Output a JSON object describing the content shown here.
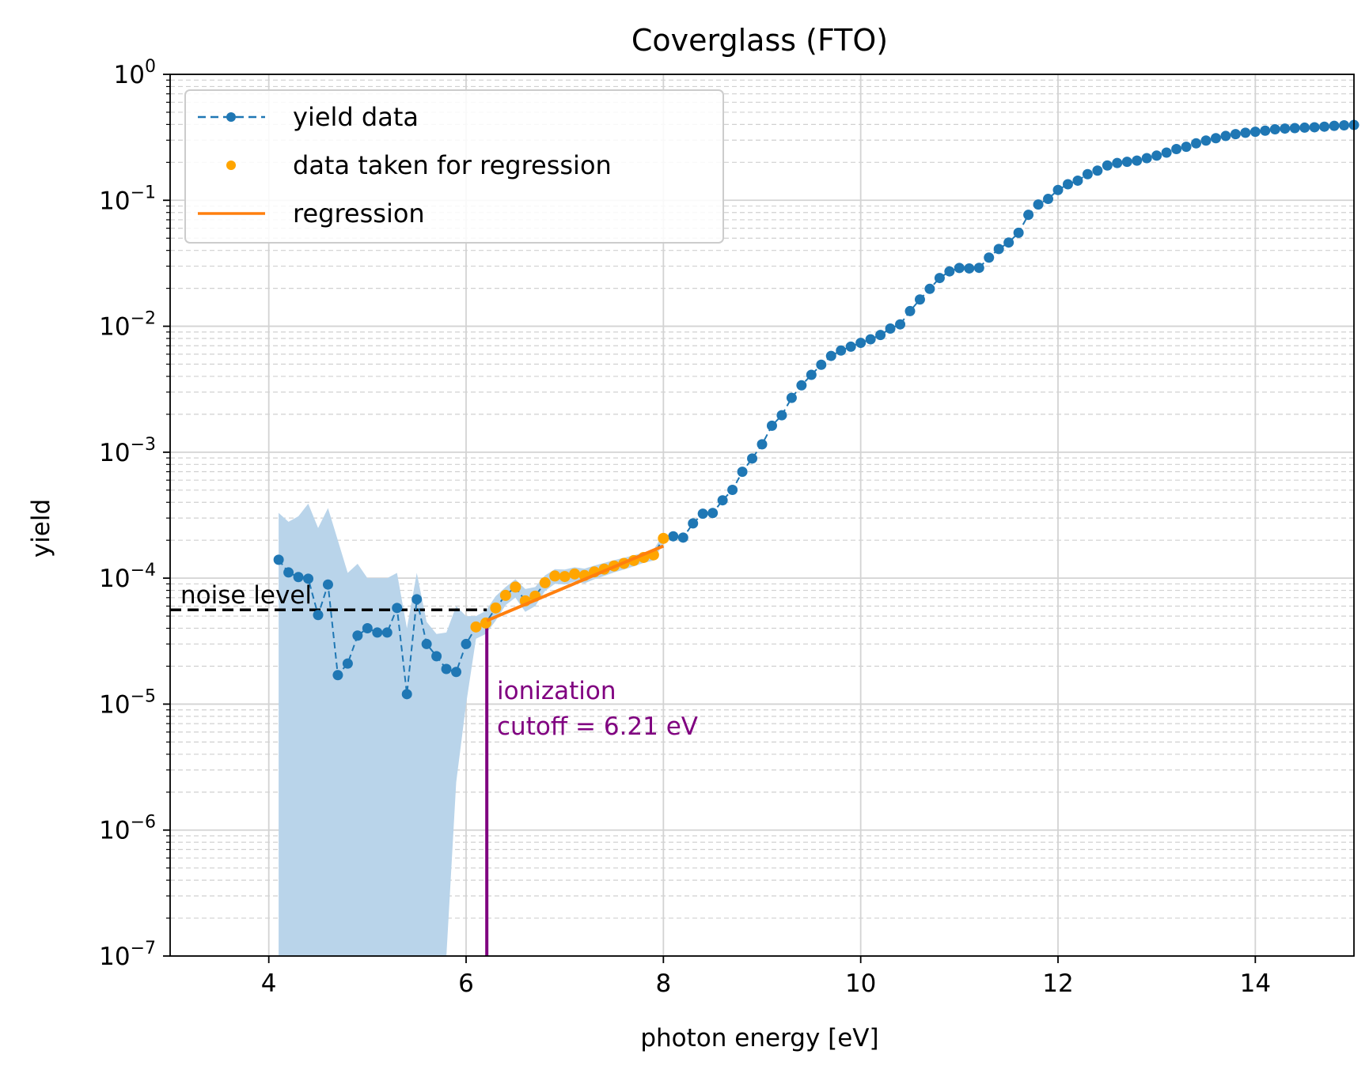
{
  "chart_data": {
    "type": "line",
    "title": "Coverglass (FTO)",
    "xlabel": "photon energy [eV]",
    "ylabel": "yield",
    "xlim": [
      3,
      15
    ],
    "ylim": [
      1e-07,
      1
    ],
    "yscale": "log",
    "grid": true,
    "legend_position": "top-left",
    "x_ticks": [
      4,
      6,
      8,
      10,
      12,
      14
    ],
    "y_ticks": [
      {
        "value": 1e-07,
        "base": "10",
        "exp": "−7"
      },
      {
        "value": 1e-06,
        "base": "10",
        "exp": "−6"
      },
      {
        "value": 1e-05,
        "base": "10",
        "exp": "−5"
      },
      {
        "value": 0.0001,
        "base": "10",
        "exp": "−4"
      },
      {
        "value": 0.001,
        "base": "10",
        "exp": "−3"
      },
      {
        "value": 0.01,
        "base": "10",
        "exp": "−2"
      },
      {
        "value": 0.1,
        "base": "10",
        "exp": "−1"
      },
      {
        "value": 1,
        "base": "10",
        "exp": "0"
      }
    ],
    "legend": [
      {
        "label": "yield data",
        "color": "#1f77b4",
        "style": "dashed-line-dot"
      },
      {
        "label": "data taken for regression",
        "color": "#ffa500",
        "style": "dot"
      },
      {
        "label": "regression",
        "color": "#ff7f0e",
        "style": "line"
      }
    ],
    "series": [
      {
        "name": "yield data",
        "color": "#1f77b4",
        "x": [
          4.1,
          4.2,
          4.3,
          4.4,
          4.5,
          4.6,
          4.7,
          4.8,
          4.9,
          5.0,
          5.1,
          5.2,
          5.3,
          5.4,
          5.5,
          5.6,
          5.7,
          5.8,
          5.9,
          6.0,
          6.1,
          6.2,
          6.3,
          6.4,
          6.5,
          6.6,
          6.7,
          6.8,
          6.9,
          7.0,
          7.1,
          7.2,
          7.3,
          7.4,
          7.5,
          7.6,
          7.7,
          7.8,
          7.9,
          8.0,
          8.1,
          8.2,
          8.3,
          8.4,
          8.5,
          8.6,
          8.7,
          8.8,
          8.9,
          9.0,
          9.1,
          9.2,
          9.3,
          9.4,
          9.5,
          9.6,
          9.7,
          9.8,
          9.9,
          10.0,
          10.1,
          10.2,
          10.3,
          10.4,
          10.5,
          10.6,
          10.7,
          10.8,
          10.9,
          11.0,
          11.1,
          11.2,
          11.3,
          11.4,
          11.5,
          11.6,
          11.7,
          11.8,
          11.9,
          12.0,
          12.1,
          12.2,
          12.3,
          12.4,
          12.5,
          12.6,
          12.7,
          12.8,
          12.9,
          13.0,
          13.1,
          13.2,
          13.3,
          13.4,
          13.5,
          13.6,
          13.7,
          13.8,
          13.9,
          14.0,
          14.1,
          14.2,
          14.3,
          14.4,
          14.5,
          14.6,
          14.7,
          14.8,
          14.9,
          15.0
        ],
        "y": [
          0.00014,
          0.000111,
          0.000102,
          9.9e-05,
          5.1e-05,
          8.9e-05,
          1.7e-05,
          2.1e-05,
          3.5e-05,
          4e-05,
          3.7e-05,
          3.7e-05,
          5.8e-05,
          1.2e-05,
          6.8e-05,
          3e-05,
          2.4e-05,
          1.9e-05,
          1.8e-05,
          3e-05,
          4.1e-05,
          4.4e-05,
          5.8e-05,
          7.3e-05,
          8.5e-05,
          6.6e-05,
          7.2e-05,
          9.2e-05,
          0.000104,
          0.000103,
          0.000108,
          0.000105,
          0.000112,
          0.000118,
          0.000125,
          0.000131,
          0.000138,
          0.000146,
          0.000153,
          0.000207,
          0.000215,
          0.00021,
          0.000272,
          0.000325,
          0.000329,
          0.000415,
          0.000502,
          0.000699,
          0.000891,
          0.001155,
          0.001623,
          0.001965,
          0.002701,
          0.003395,
          0.004116,
          0.00495,
          0.005815,
          0.006413,
          0.006885,
          0.007382,
          0.007878,
          0.008522,
          0.009582,
          0.010347,
          0.013188,
          0.016313,
          0.019809,
          0.024146,
          0.027264,
          0.029021,
          0.028774,
          0.02909,
          0.03508,
          0.041072,
          0.046197,
          0.055203,
          0.076669,
          0.09261,
          0.102542,
          0.120683,
          0.134033,
          0.143218,
          0.161223,
          0.172118,
          0.189039,
          0.197806,
          0.202125,
          0.206492,
          0.216097,
          0.226246,
          0.239047,
          0.255053,
          0.265807,
          0.283114,
          0.298034,
          0.311307,
          0.324211,
          0.335155,
          0.343849,
          0.349834,
          0.357009,
          0.366304,
          0.37102,
          0.374183,
          0.377394,
          0.379844,
          0.384077,
          0.390208,
          0.393519,
          0.3962
        ]
      },
      {
        "name": "data taken for regression",
        "color": "#ffa500",
        "x": [
          6.1,
          6.2,
          6.3,
          6.4,
          6.5,
          6.6,
          6.7,
          6.8,
          6.9,
          7.0,
          7.1,
          7.2,
          7.3,
          7.4,
          7.5,
          7.6,
          7.7,
          7.8,
          7.9,
          8.0
        ],
        "y": [
          4.1e-05,
          4.4e-05,
          5.8e-05,
          7.3e-05,
          8.5e-05,
          6.6e-05,
          7.2e-05,
          9.2e-05,
          0.000104,
          0.000103,
          0.000108,
          0.000105,
          0.000112,
          0.000118,
          0.000125,
          0.000131,
          0.000138,
          0.000146,
          0.000153,
          0.000207
        ]
      },
      {
        "name": "regression",
        "color": "#ff7f0e",
        "x": [
          6.21,
          8.0
        ],
        "y": [
          4.6e-05,
          0.00018
        ]
      }
    ],
    "uncertainty_band": {
      "color": "#b9d4ea",
      "x": [
        4.1,
        4.2,
        4.3,
        4.4,
        4.5,
        4.6,
        4.7,
        4.8,
        4.9,
        5.0,
        5.1,
        5.2,
        5.3,
        5.4,
        5.5,
        5.6,
        5.7,
        5.8,
        5.9,
        6.0,
        6.1,
        6.2,
        6.3,
        6.4,
        6.5,
        6.6,
        6.7,
        6.8,
        6.9,
        7.0,
        7.1,
        7.2,
        7.3,
        7.4,
        7.5,
        7.6,
        7.7,
        7.8,
        7.9,
        8.0
      ],
      "upper": [
        0.00033,
        0.00028,
        0.00031,
        0.00039,
        0.00025,
        0.00036,
        0.0002,
        0.00011,
        0.00013,
        0.0001,
        0.0001,
        0.0001,
        0.00011,
        4e-05,
        0.00011,
        4.5e-05,
        3.6e-05,
        3.7e-05,
        6e-05,
        5e-05,
        5e-05,
        5.5e-05,
        7.2e-05,
        8.5e-05,
        9.8e-05,
        8.2e-05,
        8.5e-05,
        0.000105,
        0.000118,
        0.000117,
        0.000122,
        0.000119,
        0.000126,
        0.000132,
        0.000139,
        0.000145,
        0.000152,
        0.00016,
        0.000168,
        0.000225
      ],
      "lower": [
        1e-07,
        1e-07,
        1e-07,
        1e-07,
        1e-07,
        1e-07,
        1e-07,
        1e-07,
        1e-07,
        1e-07,
        1e-07,
        1e-07,
        1e-07,
        1e-07,
        1e-07,
        1e-07,
        1e-07,
        1e-07,
        2.4e-06,
        1e-05,
        3.3e-05,
        3.6e-05,
        4.6e-05,
        6.1e-05,
        7e-05,
        5.4e-05,
        6e-05,
        7.9e-05,
        9e-05,
        8.9e-05,
        9.4e-05,
        9.1e-05,
        9.8e-05,
        0.000104,
        0.000111,
        0.000117,
        0.000124,
        0.000132,
        0.000138,
        0.00019
      ]
    },
    "noise_level": {
      "label": "noise level",
      "y": 5.6e-05,
      "x_end": 6.21,
      "color": "#000000"
    },
    "cutoff": {
      "x": 6.21,
      "label_line1": "ionization",
      "label_line2": "cutoff = 6.21 eV",
      "color": "#800080"
    }
  }
}
